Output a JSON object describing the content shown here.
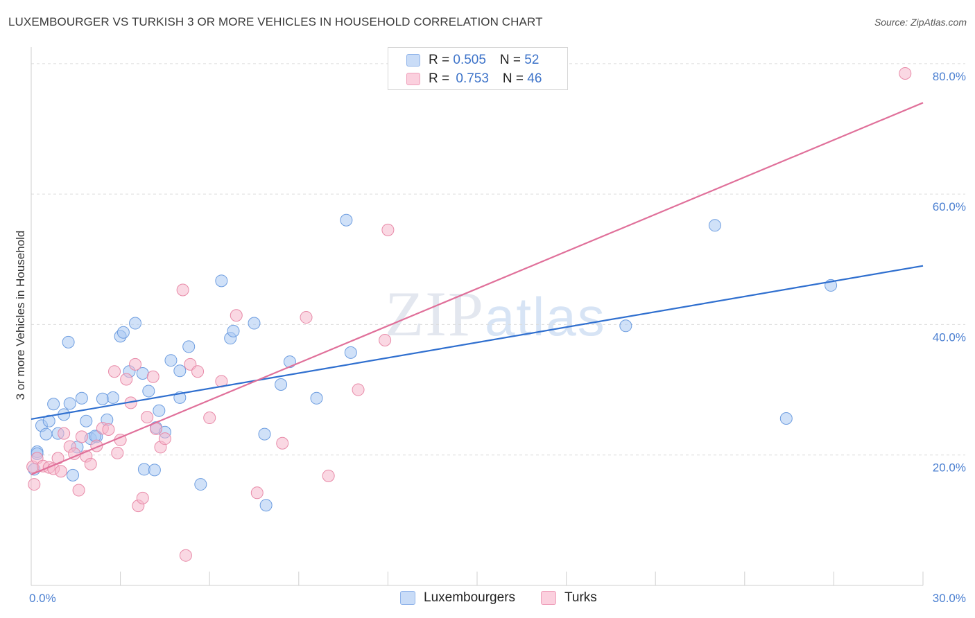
{
  "header": {
    "title": "LUXEMBOURGER VS TURKISH 3 OR MORE VEHICLES IN HOUSEHOLD CORRELATION CHART",
    "source": "Source: ZipAtlas.com"
  },
  "watermark": {
    "zip": "ZIP",
    "atlas": "atlas"
  },
  "legend": {
    "rows": [
      {
        "r_label": "R = ",
        "r_value": "0.505",
        "n_label": "N = ",
        "n_value": "52",
        "color": "#a9c8f2"
      },
      {
        "r_label": "R = ",
        "r_value": "0.753",
        "n_label": "N = ",
        "n_value": "46",
        "color": "#f6b8cc"
      }
    ]
  },
  "bottom_legend": [
    {
      "label": "Luxembourgers",
      "color": "#a9c8f2"
    },
    {
      "label": "Turks",
      "color": "#f6b8cc"
    }
  ],
  "chart_data": {
    "type": "scatter",
    "title": "LUXEMBOURGER VS TURKISH 3 OR MORE VEHICLES IN HOUSEHOLD CORRELATION CHART",
    "xlabel": "",
    "ylabel": "3 or more Vehicles in Household",
    "xlim": [
      0,
      30
    ],
    "ylim": [
      0,
      82
    ],
    "x_tick_labels": {
      "left": "0.0%",
      "right": "30.0%"
    },
    "y_ticks": [
      {
        "value": 20,
        "label": "20.0%"
      },
      {
        "value": 40,
        "label": "40.0%"
      },
      {
        "value": 60,
        "label": "60.0%"
      },
      {
        "value": 80,
        "label": "80.0%"
      }
    ],
    "grid": "horizontal dashed",
    "legend_position": "top-center",
    "series": [
      {
        "name": "Luxembourgers",
        "color": "#a9c8f2",
        "stroke": "#6d9de0",
        "trend_color": "#2f6fcf",
        "trend": {
          "x": [
            0,
            30
          ],
          "y": [
            25.5,
            49.0
          ]
        },
        "points": [
          [
            0.1,
            17.8
          ],
          [
            0.2,
            20.5
          ],
          [
            0.35,
            24.5
          ],
          [
            0.5,
            23.2
          ],
          [
            0.6,
            25.2
          ],
          [
            0.75,
            27.8
          ],
          [
            0.9,
            23.3
          ],
          [
            1.1,
            26.2
          ],
          [
            1.3,
            27.9
          ],
          [
            1.4,
            16.9
          ],
          [
            1.55,
            21.2
          ],
          [
            1.7,
            28.7
          ],
          [
            1.85,
            25.2
          ],
          [
            2.0,
            22.5
          ],
          [
            2.2,
            22.8
          ],
          [
            2.4,
            28.6
          ],
          [
            2.55,
            25.4
          ],
          [
            2.75,
            28.8
          ],
          [
            3.0,
            38.2
          ],
          [
            3.1,
            38.8
          ],
          [
            3.3,
            32.8
          ],
          [
            3.5,
            40.2
          ],
          [
            3.75,
            32.5
          ],
          [
            3.8,
            17.8
          ],
          [
            3.95,
            29.8
          ],
          [
            4.15,
            17.7
          ],
          [
            4.2,
            24.2
          ],
          [
            4.3,
            26.8
          ],
          [
            4.5,
            23.5
          ],
          [
            4.7,
            34.5
          ],
          [
            5.0,
            28.8
          ],
          [
            5.0,
            32.9
          ],
          [
            5.3,
            36.6
          ],
          [
            5.7,
            15.5
          ],
          [
            6.4,
            46.7
          ],
          [
            6.7,
            37.9
          ],
          [
            6.8,
            39.0
          ],
          [
            7.5,
            40.2
          ],
          [
            7.85,
            23.2
          ],
          [
            7.9,
            12.3
          ],
          [
            8.4,
            30.8
          ],
          [
            8.7,
            34.3
          ],
          [
            9.6,
            28.7
          ],
          [
            10.6,
            56.0
          ],
          [
            10.75,
            35.7
          ],
          [
            20.0,
            39.8
          ],
          [
            23.0,
            55.2
          ],
          [
            25.4,
            25.6
          ],
          [
            26.9,
            46.0
          ],
          [
            1.25,
            37.3
          ],
          [
            0.2,
            20.2
          ],
          [
            2.15,
            22.9
          ]
        ]
      },
      {
        "name": "Turks",
        "color": "#f6b8cc",
        "stroke": "#e88aa8",
        "trend_color": "#e0709a",
        "trend": {
          "x": [
            0,
            30
          ],
          "y": [
            17.0,
            74.0
          ]
        },
        "points": [
          [
            0.05,
            18.2
          ],
          [
            0.1,
            15.5
          ],
          [
            0.2,
            19.5
          ],
          [
            0.4,
            18.3
          ],
          [
            0.6,
            18.1
          ],
          [
            0.75,
            17.9
          ],
          [
            0.9,
            19.5
          ],
          [
            1.0,
            17.5
          ],
          [
            1.1,
            23.3
          ],
          [
            1.3,
            21.3
          ],
          [
            1.45,
            20.2
          ],
          [
            1.6,
            14.6
          ],
          [
            1.7,
            22.8
          ],
          [
            1.85,
            19.8
          ],
          [
            2.0,
            18.6
          ],
          [
            2.2,
            21.4
          ],
          [
            2.4,
            24.1
          ],
          [
            2.6,
            23.9
          ],
          [
            2.8,
            32.8
          ],
          [
            2.9,
            20.3
          ],
          [
            3.0,
            22.3
          ],
          [
            3.2,
            31.6
          ],
          [
            3.35,
            28.0
          ],
          [
            3.5,
            33.9
          ],
          [
            3.6,
            12.2
          ],
          [
            3.75,
            13.4
          ],
          [
            3.9,
            25.8
          ],
          [
            4.1,
            32.0
          ],
          [
            4.2,
            24.0
          ],
          [
            4.35,
            21.2
          ],
          [
            4.5,
            22.5
          ],
          [
            5.1,
            45.3
          ],
          [
            5.2,
            4.6
          ],
          [
            5.35,
            33.9
          ],
          [
            5.6,
            32.8
          ],
          [
            6.0,
            25.7
          ],
          [
            6.4,
            31.3
          ],
          [
            6.9,
            41.4
          ],
          [
            7.6,
            14.2
          ],
          [
            8.45,
            21.8
          ],
          [
            9.25,
            41.1
          ],
          [
            10.0,
            16.8
          ],
          [
            11.0,
            30.0
          ],
          [
            11.9,
            37.6
          ],
          [
            12.0,
            54.5
          ],
          [
            29.4,
            78.5
          ]
        ]
      }
    ]
  }
}
